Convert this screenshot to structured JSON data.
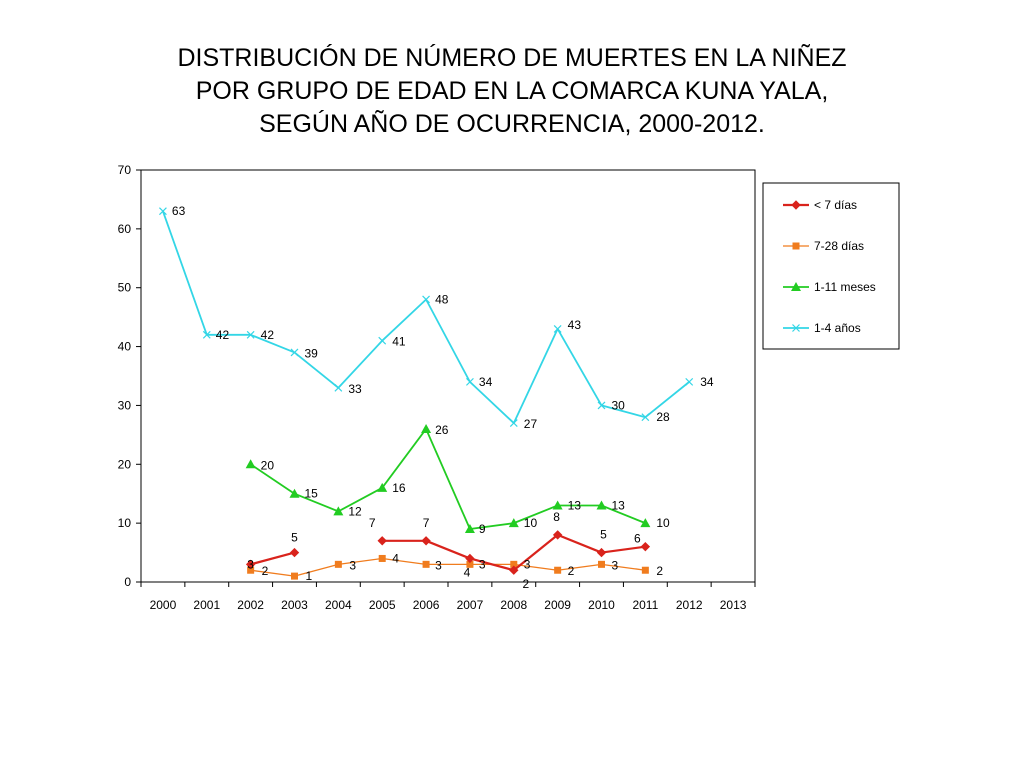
{
  "title_lines": [
    "DISTRIBUCIÓN DE NÚMERO DE MUERTES EN LA NIÑEZ",
    "POR GRUPO DE EDAD EN LA COMARCA  KUNA YALA,",
    "SEGÚN AÑO DE OCURRENCIA, 2000-2012."
  ],
  "chart_data": {
    "type": "line",
    "title": "DISTRIBUCIÓN DE NÚMERO DE MUERTES EN LA NIÑEZ POR GRUPO DE EDAD EN LA COMARCA  KUNA YALA, SEGÚN AÑO DE OCURRENCIA, 2000-2012.",
    "categories": [
      "2000",
      "2001",
      "2002",
      "2003",
      "2004",
      "2005",
      "2006",
      "2007",
      "2008",
      "2009",
      "2010",
      "2011",
      "2012",
      "2013"
    ],
    "ylim": [
      0,
      70
    ],
    "yticks": [
      0,
      10,
      20,
      30,
      40,
      50,
      60,
      70
    ],
    "grid": false,
    "legend_position": "top-right",
    "series": [
      {
        "name": "< 7 días",
        "color": "#d9231c",
        "marker": "diamond",
        "values": [
          null,
          null,
          3,
          5,
          null,
          7,
          7,
          4,
          2,
          8,
          5,
          6,
          null,
          null
        ]
      },
      {
        "name": "7-28 días",
        "color": "#f07c1e",
        "marker": "square",
        "values": [
          null,
          null,
          2,
          1,
          3,
          4,
          3,
          3,
          3,
          2,
          3,
          2,
          null,
          null
        ]
      },
      {
        "name": "1-11 meses",
        "color": "#22cc22",
        "marker": "triangle",
        "values": [
          null,
          null,
          20,
          15,
          12,
          16,
          26,
          9,
          10,
          13,
          13,
          10,
          null,
          null
        ]
      },
      {
        "name": "1-4 años",
        "color": "#33d6e6",
        "marker": "x",
        "values": [
          63,
          42,
          42,
          39,
          33,
          41,
          48,
          34,
          27,
          43,
          30,
          28,
          34,
          null
        ]
      }
    ]
  }
}
